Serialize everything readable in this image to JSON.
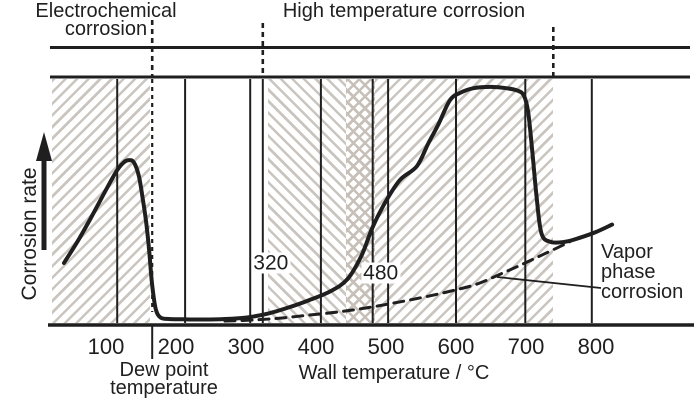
{
  "figure": {
    "top_labels": {
      "electrochemical": {
        "line1": "Electrochemical",
        "line2": "corrosion"
      },
      "high_temp": "High temperature corrosion"
    },
    "y_axis": {
      "label": "Corrosion rate"
    },
    "x_axis": {
      "label": "Wall temperature / °C"
    },
    "annotations": {
      "dew_point": {
        "line1": "Dew point",
        "line2": "temperature"
      },
      "vapor": {
        "line1": "Vapor",
        "line2": "phase",
        "line3": "corrosion"
      }
    },
    "colors": {
      "ink": "#1f1f1f",
      "hatch": "#cbc5bf",
      "background": "#ffffff"
    }
  },
  "chart_data": {
    "type": "line",
    "title": "",
    "xlabel": "Wall temperature / °C",
    "ylabel": "Corrosion rate",
    "x_ticks": [
      100,
      200,
      300,
      400,
      500,
      600,
      700,
      800
    ],
    "x_range": [
      20,
      934
    ],
    "y_range": [
      0,
      1
    ],
    "grid": "vertical-only",
    "legend": "none",
    "series": [
      {
        "name": "Corrosion rate curve",
        "style": "solid",
        "x": [
          40,
          60,
          80,
          100,
          115,
          125,
          133,
          140,
          147,
          153,
          158,
          162,
          166,
          171,
          178,
          190,
          210,
          240,
          270,
          300,
          330,
          360,
          390,
          420,
          445,
          465,
          481,
          500,
          520,
          544,
          560,
          575,
          591,
          605,
          625,
          650,
          672,
          688,
          697,
          703,
          709,
          715,
          722,
          735,
          755,
          775,
          800,
          823
        ],
        "y": [
          0.25,
          0.34,
          0.44,
          0.545,
          0.62,
          0.655,
          0.665,
          0.655,
          0.6,
          0.5,
          0.4,
          0.29,
          0.16,
          0.065,
          0.03,
          0.024,
          0.023,
          0.022,
          0.024,
          0.03,
          0.045,
          0.07,
          0.1,
          0.135,
          0.185,
          0.28,
          0.395,
          0.5,
          0.585,
          0.64,
          0.73,
          0.81,
          0.905,
          0.935,
          0.955,
          0.96,
          0.955,
          0.945,
          0.925,
          0.86,
          0.7,
          0.52,
          0.37,
          0.335,
          0.335,
          0.35,
          0.375,
          0.405
        ]
      },
      {
        "name": "Vapor phase corrosion",
        "style": "dashed",
        "x": [
          270,
          310,
          350,
          390,
          430,
          470,
          510,
          550,
          590,
          630,
          663,
          695,
          725,
          755,
          766
        ],
        "y": [
          0.016,
          0.02,
          0.028,
          0.04,
          0.052,
          0.068,
          0.088,
          0.11,
          0.135,
          0.165,
          0.205,
          0.245,
          0.285,
          0.325,
          0.342
        ]
      }
    ],
    "vertical_gridlines": [
      {
        "t": 116
      },
      {
        "t": 213
      },
      {
        "t": 306
      },
      {
        "t": 324,
        "label": "320"
      },
      {
        "t": 407
      },
      {
        "t": 481,
        "label": "480"
      },
      {
        "t": 503
      },
      {
        "t": 600
      },
      {
        "t": 699
      },
      {
        "t": 794
      }
    ],
    "dashed_guides": [
      {
        "t": 166,
        "name": "dew-point-boundary",
        "extends_into_plot": true
      },
      {
        "t": 324,
        "name": "high-temp-start"
      },
      {
        "t": 739,
        "name": "high-temp-end"
      }
    ],
    "regions": [
      {
        "name": "electrochemical-corrosion-zone",
        "t0": 23,
        "t1": 163,
        "hatch": "/"
      },
      {
        "name": "high-temperature-corrosion-zone-a",
        "t0": 331,
        "t1": 443,
        "hatch": "\\"
      },
      {
        "name": "high-temperature-corrosion-overlap-band",
        "t0": 443,
        "t1": 484,
        "hatch": "x"
      },
      {
        "name": "high-temperature-corrosion-zone-b",
        "t0": 484,
        "t1": 739,
        "hatch": "/"
      }
    ],
    "dew_point_t": 166,
    "annotations": [
      "320",
      "480",
      "Dew point temperature",
      "Vapor phase corrosion"
    ]
  }
}
